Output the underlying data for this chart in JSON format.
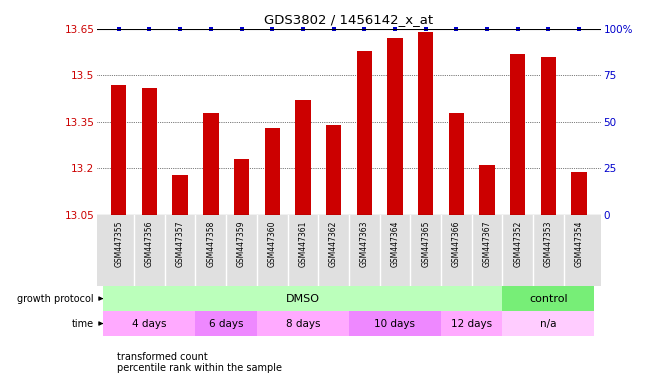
{
  "title": "GDS3802 / 1456142_x_at",
  "samples": [
    "GSM447355",
    "GSM447356",
    "GSM447357",
    "GSM447358",
    "GSM447359",
    "GSM447360",
    "GSM447361",
    "GSM447362",
    "GSM447363",
    "GSM447364",
    "GSM447365",
    "GSM447366",
    "GSM447367",
    "GSM447352",
    "GSM447353",
    "GSM447354"
  ],
  "bar_values": [
    13.47,
    13.46,
    13.18,
    13.38,
    13.23,
    13.33,
    13.42,
    13.34,
    13.58,
    13.62,
    13.64,
    13.38,
    13.21,
    13.57,
    13.56,
    13.19
  ],
  "ymin": 13.05,
  "ymax": 13.65,
  "yticks": [
    13.05,
    13.2,
    13.35,
    13.5,
    13.65
  ],
  "right_yticks": [
    0,
    25,
    50,
    75,
    100
  ],
  "bar_color": "#cc0000",
  "percentile_color": "#0000cc",
  "dmso_color": "#bbffbb",
  "control_color": "#77ee77",
  "time_colors": [
    "#ffaaff",
    "#ee88ff",
    "#ffaaff",
    "#ee88ff",
    "#ffaaff",
    "#ffccff"
  ],
  "time_labels": [
    "4 days",
    "6 days",
    "8 days",
    "10 days",
    "12 days",
    "n/a"
  ],
  "time_starts": [
    -0.5,
    2.5,
    4.5,
    7.5,
    10.5,
    12.5
  ],
  "time_ends": [
    2.5,
    4.5,
    7.5,
    10.5,
    12.5,
    15.5
  ]
}
